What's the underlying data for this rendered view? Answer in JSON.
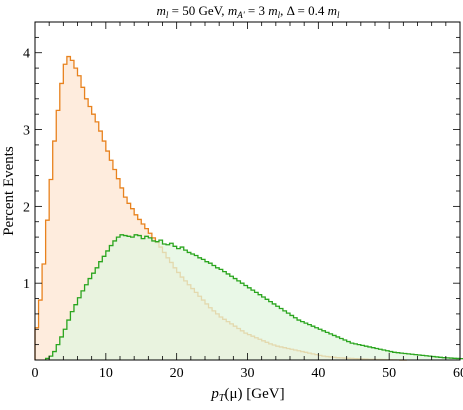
{
  "chart_data": {
    "type": "histogram",
    "title": "m_l = 50 GeV, m_A' = 3 m_l, Δ = 0.4 m_l",
    "title_parts": {
      "part1": "m",
      "part1_sub": "l",
      "part1_rest": " = 50 GeV,   ",
      "part2": "m",
      "part2_sub": "A'",
      "part2_rest": " = 3 ",
      "part2_m": "m",
      "part2_m_sub": "l",
      "part3": ",   Δ = 0.4 ",
      "part3_m": "m",
      "part3_m_sub": "l"
    },
    "xlabel": "p_T(μ)  [GeV]",
    "xlabel_parts": {
      "p": "p",
      "sub": "T",
      "mid": "(μ)",
      "unit": "  [GeV]"
    },
    "ylabel": "Percent Events",
    "xlim": [
      0,
      60
    ],
    "ylim": [
      0,
      4.4
    ],
    "x_ticks": [
      "0",
      "10",
      "20",
      "30",
      "40",
      "50",
      "60"
    ],
    "y_ticks": [
      "1",
      "2",
      "3",
      "4"
    ],
    "grid": false,
    "bin_width": 0.5,
    "series": [
      {
        "color": "#e8821e",
        "fill": "#fde6d2",
        "x_start": 0,
        "values": [
          0.42,
          0.78,
          1.25,
          1.82,
          2.35,
          2.85,
          3.25,
          3.6,
          3.85,
          3.95,
          3.9,
          3.8,
          3.7,
          3.55,
          3.4,
          3.3,
          3.2,
          3.1,
          2.98,
          2.85,
          2.72,
          2.6,
          2.48,
          2.36,
          2.24,
          2.12,
          2.04,
          1.97,
          1.89,
          1.83,
          1.77,
          1.71,
          1.65,
          1.59,
          1.53,
          1.47,
          1.4,
          1.33,
          1.27,
          1.2,
          1.14,
          1.08,
          1.03,
          0.98,
          0.93,
          0.88,
          0.83,
          0.78,
          0.73,
          0.68,
          0.64,
          0.6,
          0.56,
          0.53,
          0.5,
          0.47,
          0.44,
          0.41,
          0.38,
          0.35,
          0.33,
          0.31,
          0.29,
          0.27,
          0.25,
          0.23,
          0.21,
          0.195,
          0.18,
          0.17,
          0.16,
          0.15,
          0.14,
          0.13,
          0.12,
          0.11,
          0.1,
          0.09,
          0.08,
          0.07,
          0.06,
          0.05,
          0.045,
          0.04,
          0.035,
          0.03,
          0.028,
          0.025,
          0.022,
          0.02,
          0.018,
          0.016,
          0.014,
          0.012,
          0.01,
          0.009,
          0.008,
          0.007,
          0.006,
          0.005,
          0.004,
          0.003,
          0.002,
          0.001,
          0.0
        ]
      },
      {
        "color": "#2aa51e",
        "fill": "#e1f6df",
        "x_start": 1.5,
        "values": [
          0.02,
          0.05,
          0.11,
          0.2,
          0.3,
          0.4,
          0.52,
          0.63,
          0.72,
          0.81,
          0.9,
          0.98,
          1.06,
          1.13,
          1.2,
          1.28,
          1.35,
          1.42,
          1.49,
          1.55,
          1.6,
          1.63,
          1.62,
          1.61,
          1.6,
          1.63,
          1.62,
          1.58,
          1.61,
          1.59,
          1.55,
          1.54,
          1.56,
          1.51,
          1.5,
          1.52,
          1.48,
          1.45,
          1.47,
          1.43,
          1.4,
          1.38,
          1.36,
          1.33,
          1.31,
          1.28,
          1.26,
          1.23,
          1.2,
          1.18,
          1.15,
          1.12,
          1.09,
          1.06,
          1.03,
          1.0,
          0.97,
          0.94,
          0.91,
          0.88,
          0.85,
          0.82,
          0.79,
          0.76,
          0.73,
          0.7,
          0.67,
          0.64,
          0.61,
          0.58,
          0.55,
          0.52,
          0.5,
          0.48,
          0.46,
          0.44,
          0.42,
          0.4,
          0.38,
          0.36,
          0.34,
          0.32,
          0.3,
          0.28,
          0.26,
          0.24,
          0.22,
          0.21,
          0.2,
          0.19,
          0.18,
          0.17,
          0.16,
          0.15,
          0.14,
          0.13,
          0.12,
          0.11,
          0.1,
          0.095,
          0.09,
          0.085,
          0.08,
          0.075,
          0.07,
          0.065,
          0.06,
          0.055,
          0.05,
          0.045,
          0.04,
          0.035,
          0.03,
          0.028,
          0.025,
          0.022,
          0.02,
          0.018,
          0.015,
          0.012
        ]
      }
    ]
  }
}
